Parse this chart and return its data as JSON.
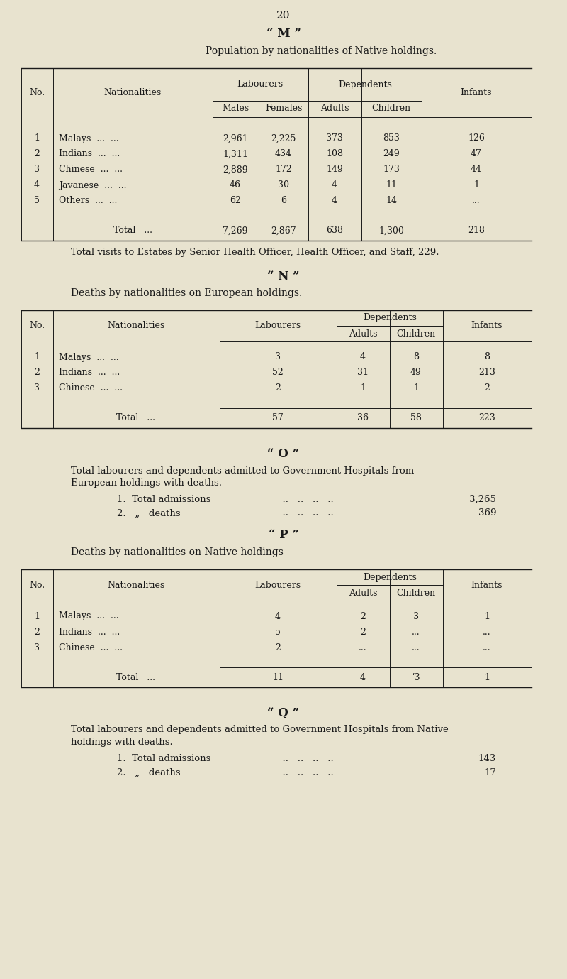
{
  "bg_color": "#e8e3cf",
  "text_color": "#1a1a1a",
  "page_number": "20",
  "section_M": {
    "title": "“ M ”",
    "subtitle": "Population by nationalities of Native holdings.",
    "rows": [
      {
        "no": "1",
        "nat": "Malays",
        "males": "2,961",
        "females": "2,225",
        "adults": "373",
        "children": "853",
        "infants": "126"
      },
      {
        "no": "2",
        "nat": "Indians",
        "males": "1,311",
        "females": "434",
        "adults": "108",
        "children": "249",
        "infants": "47"
      },
      {
        "no": "3",
        "nat": "Chinese",
        "males": "2,889",
        "females": "172",
        "adults": "149",
        "children": "173",
        "infants": "44"
      },
      {
        "no": "4",
        "nat": "Javanese",
        "males": "46",
        "females": "30",
        "adults": "4",
        "children": "11",
        "infants": "1"
      },
      {
        "no": "5",
        "nat": "Others",
        "males": "62",
        "females": "6",
        "adults": "4",
        "children": "14",
        "infants": "..."
      }
    ],
    "total_row": {
      "males": "7,269",
      "females": "2,867",
      "adults": "638",
      "children": "1,300",
      "infants": "218"
    },
    "footer": "Total visits to Estates by Senior Health Officer, Health Officer, and Staff, 229."
  },
  "section_N": {
    "title": "“ N ”",
    "subtitle": "Deaths by nationalities on European holdings.",
    "rows": [
      {
        "no": "1",
        "nat": "Malays",
        "labourers": "3",
        "adults": "4",
        "children": "8",
        "infants": "8"
      },
      {
        "no": "2",
        "nat": "Indians",
        "labourers": "52",
        "adults": "31",
        "children": "49",
        "infants": "213"
      },
      {
        "no": "3",
        "nat": "Chinese",
        "labourers": "2",
        "adults": "1",
        "children": "1",
        "infants": "2"
      }
    ],
    "total_row": {
      "labourers": "57",
      "adults": "36",
      "children": "58",
      "infants": "223"
    }
  },
  "section_O": {
    "title": "“ O ”",
    "line1": "Total labourers and dependents admitted to Government Hospitals from",
    "line2": "European holdings with deaths.",
    "items": [
      {
        "label": "1.  Total admissions",
        "dots": "  ..   ..   ..   ..",
        "value": "3,265"
      },
      {
        "label": "2.   „   deaths",
        "dots": "  ..   ..   ..   ..",
        "value": "369"
      }
    ]
  },
  "section_P": {
    "title": "“ P ”",
    "subtitle": "Deaths by nationalities on Native holdings",
    "rows": [
      {
        "no": "1",
        "nat": "Malays",
        "labourers": "4",
        "adults": "2",
        "children": "3",
        "infants": "1"
      },
      {
        "no": "2",
        "nat": "Indians",
        "labourers": "5",
        "adults": "2",
        "children": "...",
        "infants": "..."
      },
      {
        "no": "3",
        "nat": "Chinese",
        "labourers": "2",
        "adults": "...",
        "children": "...",
        "infants": "..."
      }
    ],
    "total_row": {
      "labourers": "11",
      "adults": "4",
      "children": "ʹ3",
      "infants": "1"
    }
  },
  "section_Q": {
    "title": "“ Q ”",
    "line1": "Total labourers and dependents admitted to Government Hospitals from Native",
    "line2": "holdings with deaths.",
    "items": [
      {
        "label": "1.  Total admissions",
        "dots": "  ..   ..   ..   ..",
        "value": "143"
      },
      {
        "label": "2.   „   deaths",
        "dots": "  ..   ..   ..   ..",
        "value": "17"
      }
    ]
  }
}
